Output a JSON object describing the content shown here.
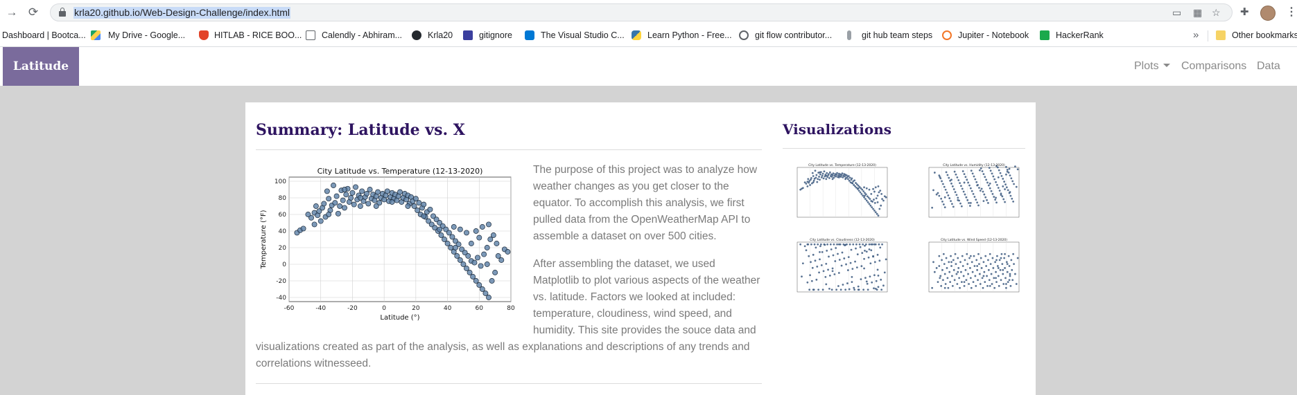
{
  "browser": {
    "url": "krla20.github.io/Web-Design-Challenge/index.html",
    "bookmarks": [
      {
        "label": "Dashboard | Bootca...",
        "icon": "bootcamp-icon",
        "color": "#ffffff"
      },
      {
        "label": "My Drive - Google...",
        "icon": "google-drive-icon",
        "color": "#1fa463"
      },
      {
        "label": "HITLAB - RICE BOO...",
        "icon": "gitlab-icon",
        "color": "#e24329"
      },
      {
        "label": "Calendly - Abhiram...",
        "icon": "calendly-icon",
        "color": "#ffffff"
      },
      {
        "label": "Krla20",
        "icon": "github-icon",
        "color": "#24292e"
      },
      {
        "label": "gitignore",
        "icon": "gitignore-icon",
        "color": "#3b3f9e"
      },
      {
        "label": "The Visual Studio C...",
        "icon": "vscode-icon",
        "color": "#0078d4"
      },
      {
        "label": "Learn Python - Free...",
        "icon": "python-icon",
        "color": "#3776ab"
      },
      {
        "label": "git flow contributor...",
        "icon": "globe-icon",
        "color": "#5f6368"
      },
      {
        "label": "git hub team steps",
        "icon": "pin-icon",
        "color": "#5f6368"
      },
      {
        "label": "Jupiter - Notebook",
        "icon": "jupyter-icon",
        "color": "#f37626"
      },
      {
        "label": "HackerRank",
        "icon": "hackerrank-icon",
        "color": "#1ba94c"
      }
    ],
    "other_bookmarks": "Other bookmarks"
  },
  "navbar": {
    "brand": "Latitude",
    "links": [
      "Plots",
      "Comparisons",
      "Data"
    ]
  },
  "summary": {
    "title": "Summary: Latitude vs. X",
    "paragraph1": "The purpose of this project was to analyze how weather changes as you get closer to the equator. To accomplish this analysis, we first pulled data from the OpenWeatherMap API to assemble a dataset on over 500 cities.",
    "paragraph2": "After assembling the dataset, we used Matplotlib to plot various aspects of the weather vs. latitude. Factors we looked at included: temperature, cloudiness, wind speed, and humidity. This site provides the souce data and visualizations created as part of the analysis, as well as explanations and descriptions of any trends and correlations witnesseed."
  },
  "visualizations": {
    "title": "Visualizations",
    "thumbnails": [
      "City Latitude vs. Temperature (12-13-2020)",
      "City Latitude vs. Humidity (12-13-2020)",
      "City Latitude vs. Cloudiness (12-13-2020)",
      "City Latitude vs. Wind Speed (12-13-2020)"
    ]
  },
  "chart_data": {
    "type": "scatter",
    "title": "City Latitude vs. Temperature (12-13-2020)",
    "xlabel": "Latitude (°)",
    "ylabel": "Temperature (°F)",
    "xlim": [
      -60,
      80
    ],
    "ylim": [
      -45,
      105
    ],
    "xticks": [
      -60,
      -40,
      -20,
      0,
      20,
      40,
      60,
      80
    ],
    "yticks": [
      -40,
      -20,
      0,
      20,
      40,
      60,
      80,
      100
    ],
    "grid": true,
    "marker_color": "#5b7fa6",
    "points": [
      [
        -55,
        38
      ],
      [
        -53,
        41
      ],
      [
        -51,
        43
      ],
      [
        -46,
        56
      ],
      [
        -44,
        62
      ],
      [
        -44,
        48
      ],
      [
        -42,
        59
      ],
      [
        -41,
        64
      ],
      [
        -40,
        52
      ],
      [
        -39,
        68
      ],
      [
        -38,
        73
      ],
      [
        -37,
        57
      ],
      [
        -36,
        88
      ],
      [
        -35,
        79
      ],
      [
        -34,
        65
      ],
      [
        -33,
        71
      ],
      [
        -32,
        95
      ],
      [
        -31,
        74
      ],
      [
        -30,
        82
      ],
      [
        -29,
        61
      ],
      [
        -28,
        70
      ],
      [
        -27,
        89
      ],
      [
        -26,
        77
      ],
      [
        -25,
        68
      ],
      [
        -24,
        84
      ],
      [
        -23,
        91
      ],
      [
        -22,
        75
      ],
      [
        -21,
        80
      ],
      [
        -20,
        86
      ],
      [
        -19,
        72
      ],
      [
        -18,
        93
      ],
      [
        -17,
        78
      ],
      [
        -16,
        83
      ],
      [
        -15,
        70
      ],
      [
        -14,
        88
      ],
      [
        -13,
        76
      ],
      [
        -12,
        81
      ],
      [
        -11,
        85
      ],
      [
        -10,
        73
      ],
      [
        -9,
        90
      ],
      [
        -8,
        79
      ],
      [
        -7,
        84
      ],
      [
        -6,
        77
      ],
      [
        -5,
        82
      ],
      [
        -4,
        87
      ],
      [
        -3,
        74
      ],
      [
        -2,
        80
      ],
      [
        -1,
        85
      ],
      [
        0,
        78
      ],
      [
        1,
        83
      ],
      [
        2,
        88
      ],
      [
        3,
        76
      ],
      [
        4,
        81
      ],
      [
        5,
        86
      ],
      [
        6,
        79
      ],
      [
        7,
        84
      ],
      [
        8,
        77
      ],
      [
        9,
        82
      ],
      [
        10,
        87
      ],
      [
        11,
        75
      ],
      [
        12,
        80
      ],
      [
        13,
        85
      ],
      [
        14,
        78
      ],
      [
        15,
        83
      ],
      [
        16,
        73
      ],
      [
        17,
        81
      ],
      [
        18,
        76
      ],
      [
        19,
        70
      ],
      [
        20,
        79
      ],
      [
        21,
        65
      ],
      [
        22,
        74
      ],
      [
        23,
        60
      ],
      [
        24,
        68
      ],
      [
        25,
        72
      ],
      [
        26,
        57
      ],
      [
        27,
        63
      ],
      [
        28,
        52
      ],
      [
        29,
        66
      ],
      [
        30,
        48
      ],
      [
        31,
        58
      ],
      [
        32,
        44
      ],
      [
        33,
        54
      ],
      [
        34,
        40
      ],
      [
        35,
        50
      ],
      [
        36,
        35
      ],
      [
        37,
        46
      ],
      [
        38,
        30
      ],
      [
        39,
        42
      ],
      [
        40,
        25
      ],
      [
        41,
        38
      ],
      [
        42,
        20
      ],
      [
        43,
        33
      ],
      [
        44,
        15
      ],
      [
        45,
        28
      ],
      [
        46,
        10
      ],
      [
        47,
        24
      ],
      [
        48,
        5
      ],
      [
        49,
        18
      ],
      [
        50,
        0
      ],
      [
        51,
        14
      ],
      [
        52,
        -5
      ],
      [
        53,
        10
      ],
      [
        54,
        -10
      ],
      [
        55,
        4
      ],
      [
        56,
        -15
      ],
      [
        57,
        2
      ],
      [
        58,
        -20
      ],
      [
        59,
        8
      ],
      [
        60,
        -25
      ],
      [
        61,
        -2
      ],
      [
        62,
        -30
      ],
      [
        63,
        12
      ],
      [
        64,
        -35
      ],
      [
        65,
        20
      ],
      [
        66,
        -40
      ],
      [
        67,
        30
      ],
      [
        68,
        -20
      ],
      [
        69,
        35
      ],
      [
        70,
        -10
      ],
      [
        71,
        25
      ],
      [
        72,
        10
      ],
      [
        74,
        5
      ],
      [
        76,
        18
      ],
      [
        78,
        15
      ],
      [
        -48,
        60
      ],
      [
        -43,
        70
      ],
      [
        -35,
        60
      ],
      [
        -25,
        90
      ],
      [
        -15,
        80
      ],
      [
        -5,
        70
      ],
      [
        5,
        75
      ],
      [
        15,
        70
      ],
      [
        25,
        58
      ],
      [
        35,
        42
      ],
      [
        45,
        20
      ],
      [
        55,
        25
      ],
      [
        65,
        0
      ],
      [
        58,
        40
      ],
      [
        62,
        45
      ],
      [
        66,
        48
      ],
      [
        60,
        32
      ],
      [
        52,
        38
      ],
      [
        48,
        42
      ],
      [
        44,
        45
      ]
    ]
  }
}
